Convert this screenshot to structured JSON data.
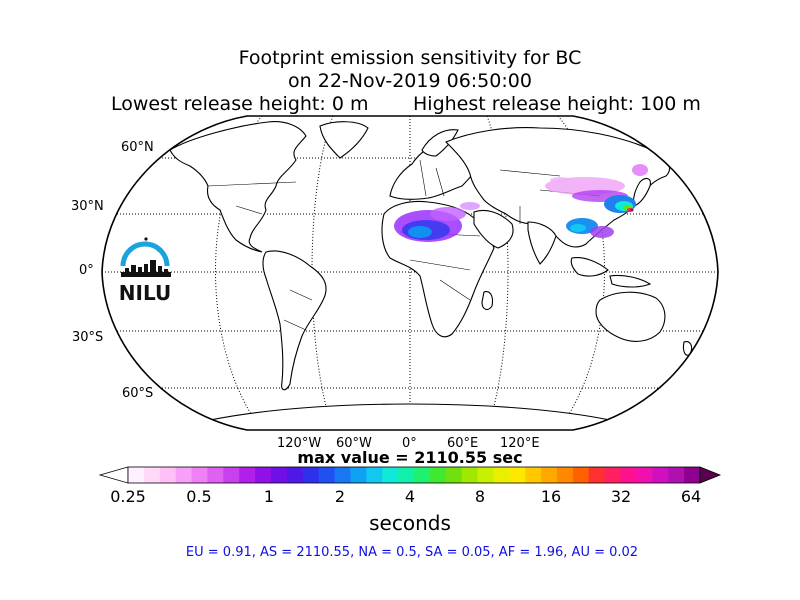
{
  "title": {
    "line1": "Footprint emission sensitivity for BC",
    "line2": "on 22-Nov-2019 06:50:00",
    "lowest": "Lowest release height: 0 m",
    "highest": "Highest release height: 100 m"
  },
  "map": {
    "projection": "Robinson",
    "lat_labels": [
      "60°N",
      "30°N",
      "0°",
      "30°S",
      "60°S"
    ],
    "lon_labels": [
      "120°W",
      "60°W",
      "0°",
      "60°E",
      "120°E"
    ],
    "logo_text": "NILU"
  },
  "max_value": "max value = 2110.55 sec",
  "colorbar": {
    "ticks": [
      "0.25",
      "0.5",
      "1",
      "2",
      "4",
      "8",
      "16",
      "32",
      "64"
    ],
    "label": "seconds",
    "colors": [
      "#fff0ff",
      "#ffd8fa",
      "#ffc0f5",
      "#f8a0f8",
      "#ee80f8",
      "#e060f4",
      "#c840f0",
      "#b020ea",
      "#9010e8",
      "#7010e6",
      "#5018e6",
      "#3030ea",
      "#2050f0",
      "#1878f2",
      "#10a0f4",
      "#10c8f0",
      "#10e8d8",
      "#10f0a8",
      "#20f070",
      "#40e830",
      "#70e010",
      "#a0e800",
      "#c8f000",
      "#e8f000",
      "#ffe800",
      "#ffc800",
      "#ffa800",
      "#ff8800",
      "#ff6000",
      "#ff3030",
      "#ff2060",
      "#ff1090",
      "#f010b0",
      "#d010c0",
      "#b010b0",
      "#900090"
    ]
  },
  "regions": "EU = 0.91,  AS = 2110.55,  NA = 0.5,  SA = 0.05,  AF = 1.96,  AU = 0.02"
}
